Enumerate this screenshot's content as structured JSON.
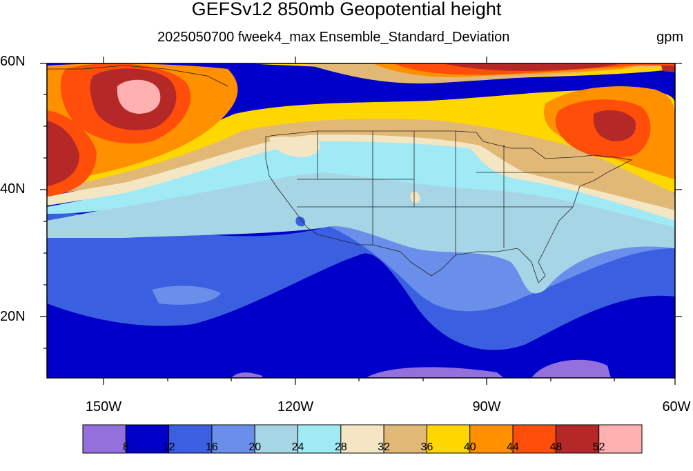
{
  "title": "GEFSv12 850mb Geopotential height",
  "subtitle": "2025050700 fweek4_max Ensemble_Standard_Deviation",
  "units": "gpm",
  "lat_labels": [
    "60N",
    "40N",
    "20N"
  ],
  "lon_labels": [
    "150W",
    "120W",
    "90W",
    "60W"
  ],
  "colorbar": {
    "colors": [
      "#9370db",
      "#0000c8",
      "#3a5fe0",
      "#6a8fea",
      "#a6d5e6",
      "#a0eaf5",
      "#f5e6c3",
      "#e2b877",
      "#ffd700",
      "#ff9000",
      "#ff4d0a",
      "#b42828",
      "#ffb0b0"
    ],
    "labels": [
      "8",
      "12",
      "16",
      "20",
      "24",
      "28",
      "32",
      "36",
      "40",
      "44",
      "48",
      "52"
    ]
  }
}
